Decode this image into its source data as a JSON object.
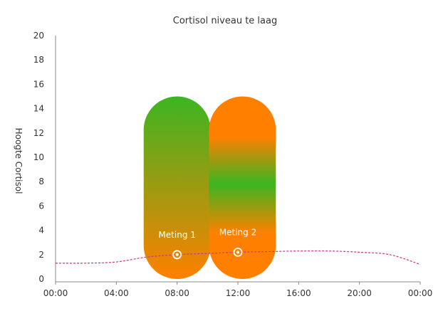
{
  "chart_data": {
    "type": "line",
    "title": "Cortisol niveau te laag",
    "xlabel": "",
    "ylabel": "Hoogte Cortisol",
    "x_ticks": [
      "00:00",
      "04:00",
      "08:00",
      "12:00",
      "16:00",
      "20:00",
      "00:00"
    ],
    "y_ticks": [
      "0",
      "2",
      "4",
      "6",
      "8",
      "10",
      "12",
      "14",
      "16",
      "18",
      "20"
    ],
    "xlim_hours": [
      0,
      24
    ],
    "ylim": [
      0,
      20
    ],
    "grid": false,
    "legend": "none",
    "series": [
      {
        "color": "#d63384",
        "style": "dashed",
        "x_hours": [
          0,
          2,
          4,
          6,
          8,
          10,
          12,
          14,
          16,
          18,
          20,
          22,
          24
        ],
        "y": [
          1.3,
          1.3,
          1.4,
          1.8,
          2.0,
          2.1,
          2.2,
          2.25,
          2.3,
          2.3,
          2.2,
          2.0,
          1.2
        ]
      }
    ],
    "ranges": [
      {
        "label": "Meting 1",
        "x_start_hours": 5.8,
        "x_end_hours": 10.2,
        "y_min": 0,
        "y_max": 15,
        "measure_x_hours": 8.0,
        "measure_y": 2.0,
        "colors": [
          "#3cb521",
          "#ff8000"
        ]
      },
      {
        "label": "Meting 2",
        "x_start_hours": 10.1,
        "x_end_hours": 14.5,
        "y_min": 0,
        "y_max": 15,
        "measure_x_hours": 12.0,
        "measure_y": 2.2,
        "colors": [
          "#ff8000",
          "#3cb521",
          "#ff8000"
        ]
      }
    ]
  }
}
